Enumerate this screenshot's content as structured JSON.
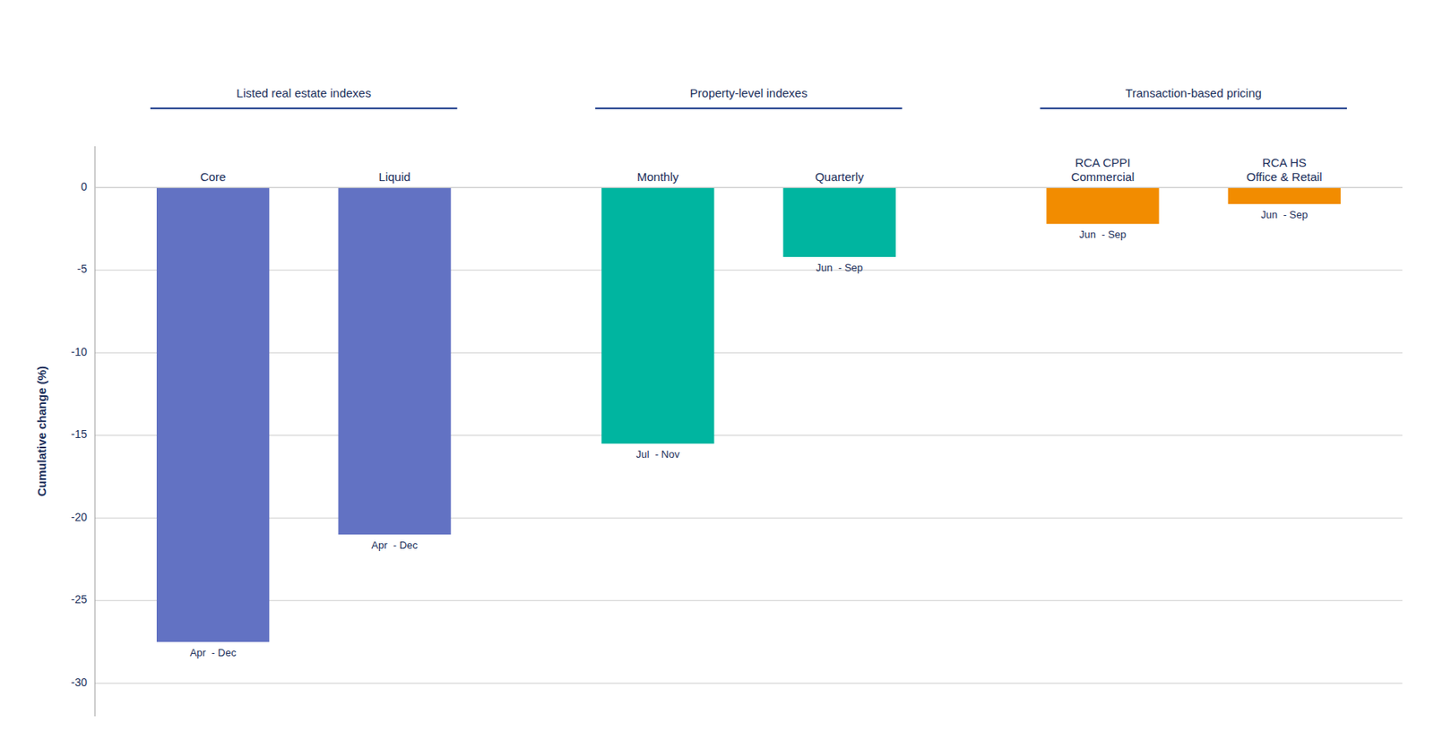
{
  "chart_data": {
    "type": "bar",
    "categories": [
      "Core",
      "Liquid",
      "Monthly",
      "Quarterly",
      "RCA CPPI\nCommercial",
      "RCA HS\nOffice & Retail"
    ],
    "values": [
      -27.5,
      -21.0,
      -15.5,
      -4.2,
      -2.2,
      -1.0
    ],
    "colors": [
      "#6272C3",
      "#6272C3",
      "#00B5A0",
      "#00B5A0",
      "#F28C00",
      "#F28C00"
    ],
    "sublabels": [
      "Apr  - Dec",
      "Apr  - Dec",
      "Jul  - Nov",
      "Jun  - Sep",
      "Jun  - Sep",
      "Jun  - Sep"
    ],
    "groups": [
      {
        "label": "Listed real estate indexes",
        "categories": [
          "Core",
          "Liquid"
        ]
      },
      {
        "label": "Property-level indexes",
        "categories": [
          "Monthly",
          "Quarterly"
        ]
      },
      {
        "label": "Transaction-based pricing",
        "categories": [
          "RCA CPPI\nCommercial",
          "RCA HS\nOffice & Retail"
        ]
      }
    ],
    "y_label": "Cumulative change (%)",
    "ylim": [
      -32,
      2.5
    ],
    "yticks": [
      0,
      -5,
      -10,
      -15,
      -20,
      -25,
      -30
    ],
    "grid": true
  }
}
